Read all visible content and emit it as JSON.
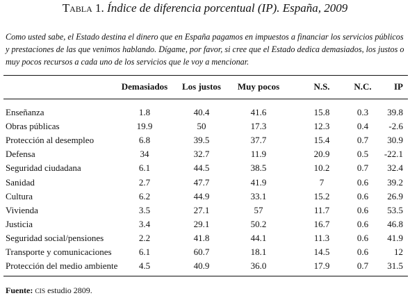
{
  "title": {
    "label": "Tabla 1.",
    "text": "Índice de diferencia porcentual (IP). España, 2009"
  },
  "note": "Como usted sabe, el Estado destina el dinero que en España pagamos en impuestos a financiar los servicios públicos y prestaciones de las que venimos hablando. Dígame, por favor, si cree que el Estado dedica demasiados, los justos o muy pocos recursos a cada uno de los servicios que le voy a mencionar.",
  "table": {
    "columns": [
      "Demasiados",
      "Los justos",
      "Muy pocos",
      "N.S.",
      "N.C.",
      "IP"
    ],
    "rows": [
      [
        "Enseñanza",
        "1.8",
        "40.4",
        "41.6",
        "15.8",
        "0.3",
        "39.8"
      ],
      [
        "Obras públicas",
        "19.9",
        "50",
        "17.3",
        "12.3",
        "0.4",
        "-2.6"
      ],
      [
        "Protección al desempleo",
        "6.8",
        "39.5",
        "37.7",
        "15.4",
        "0.7",
        "30.9"
      ],
      [
        "Defensa",
        "34",
        "32.7",
        "11.9",
        "20.9",
        "0.5",
        "-22.1"
      ],
      [
        "Seguridad ciudadana",
        "6.1",
        "44.5",
        "38.5",
        "10.2",
        "0.7",
        "32.4"
      ],
      [
        "Sanidad",
        "2.7",
        "47.7",
        "41.9",
        "7",
        "0.6",
        "39.2"
      ],
      [
        "Cultura",
        "6.2",
        "44.9",
        "33.1",
        "15.2",
        "0.6",
        "26.9"
      ],
      [
        "Vivienda",
        "3.5",
        "27.1",
        "57",
        "11.7",
        "0.6",
        "53.5"
      ],
      [
        "Justicia",
        "3.4",
        "29.1",
        "50.2",
        "16.7",
        "0.6",
        "46.8"
      ],
      [
        "Seguridad social/pensiones",
        "2.2",
        "41.8",
        "44.1",
        "11.3",
        "0.6",
        "41.9"
      ],
      [
        "Transporte y comunicaciones",
        "6.1",
        "60.7",
        "18.1",
        "14.5",
        "0.6",
        "12"
      ],
      [
        "Protección del medio ambiente",
        "4.5",
        "40.9",
        "36.0",
        "17.9",
        "0.7",
        "31.5"
      ]
    ]
  },
  "footer": {
    "label": "Fuente:",
    "org": "CIS",
    "text": "estudio 2809."
  }
}
